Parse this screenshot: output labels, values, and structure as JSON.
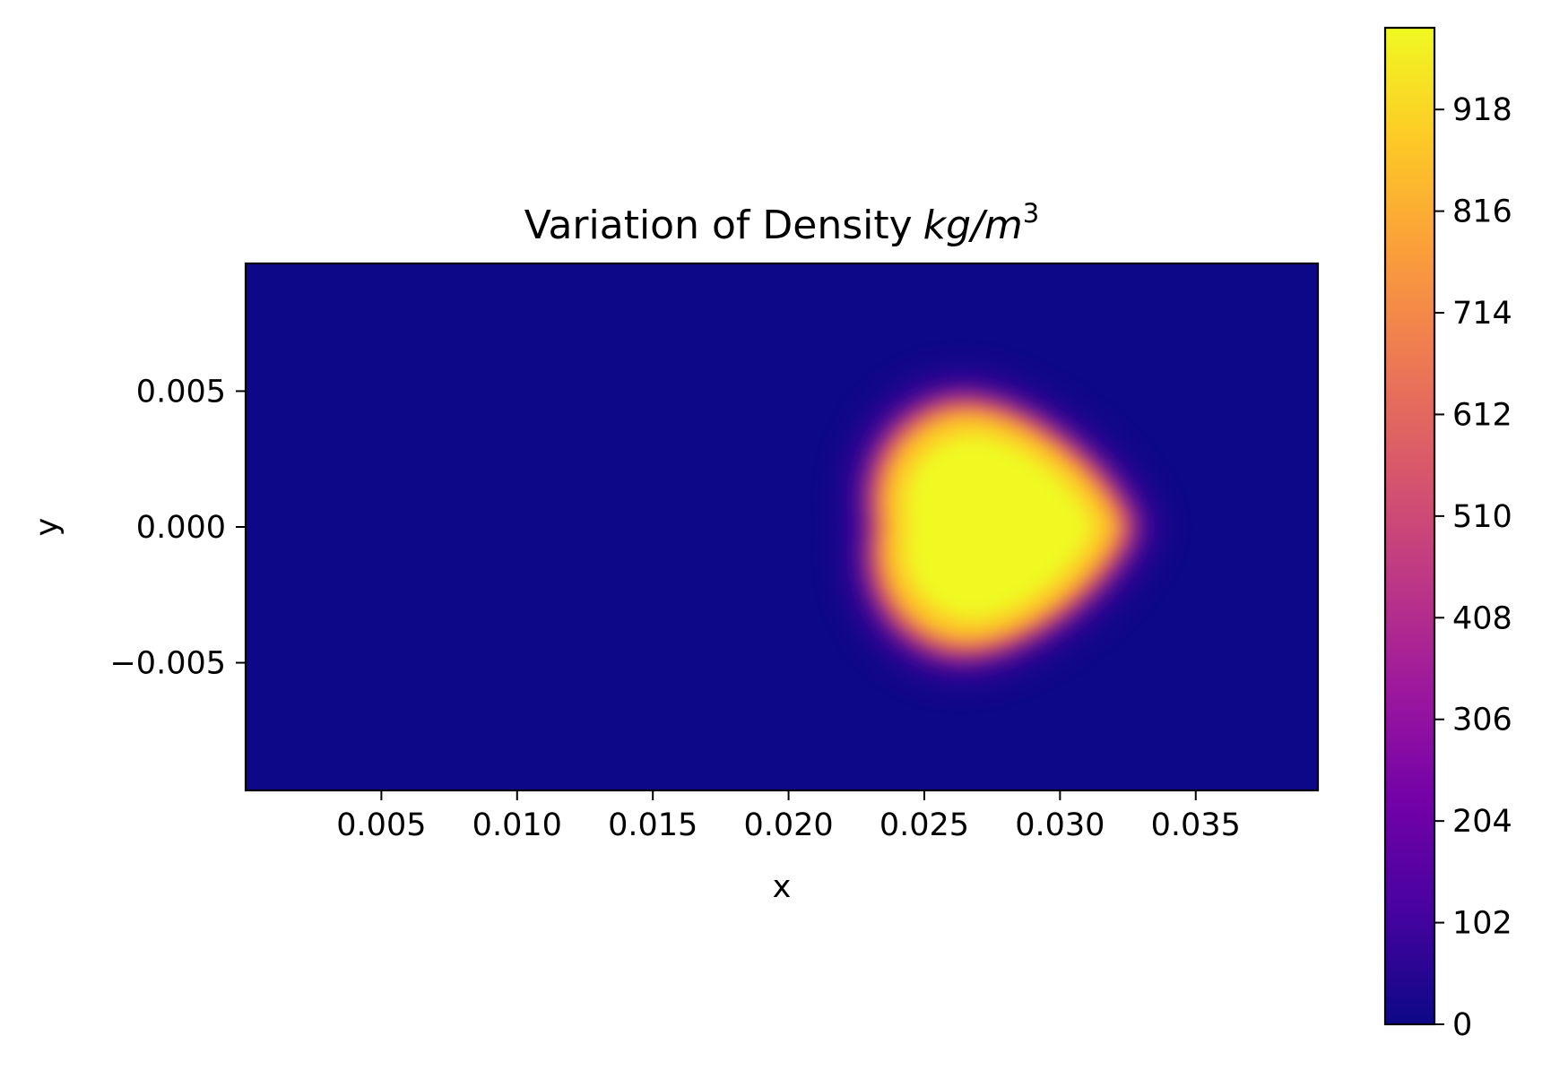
{
  "chart_data": {
    "type": "heatmap",
    "title": "Variation of Density",
    "title_math": {
      "unit_base": "kg/m",
      "unit_exponent": "3"
    },
    "xlabel": "x",
    "ylabel": "y",
    "xlim": [
      0.0,
      0.0395
    ],
    "ylim": [
      -0.0097,
      0.0097
    ],
    "x_ticks": [
      0.005,
      0.01,
      0.015,
      0.02,
      0.025,
      0.03,
      0.035
    ],
    "x_tick_labels": [
      "0.005",
      "0.010",
      "0.015",
      "0.020",
      "0.025",
      "0.030",
      "0.035"
    ],
    "y_ticks": [
      0.005,
      0.0,
      -0.005
    ],
    "y_tick_labels": [
      "0.005",
      "0.000",
      "−0.005"
    ],
    "colormap": "plasma",
    "colormap_stops": [
      "#0d0887",
      "#46039f",
      "#7201a8",
      "#9c179e",
      "#bd3786",
      "#d8576b",
      "#ed7953",
      "#fb9f3a",
      "#fdca26",
      "#f0f921"
    ],
    "colorbar": {
      "range": [
        0,
        1000
      ],
      "ticks": [
        0,
        102,
        204,
        306,
        408,
        510,
        612,
        714,
        816,
        918
      ],
      "tick_labels": [
        "0",
        "102",
        "204",
        "306",
        "408",
        "510",
        "612",
        "714",
        "816",
        "918"
      ]
    },
    "background_value": 0,
    "blob": {
      "center_x": 0.0275,
      "center_y": 0.0,
      "peak_value": 1000,
      "extent_x": [
        0.0222,
        0.0328
      ],
      "extent_y": [
        -0.0048,
        0.0048
      ]
    },
    "grid": false
  }
}
